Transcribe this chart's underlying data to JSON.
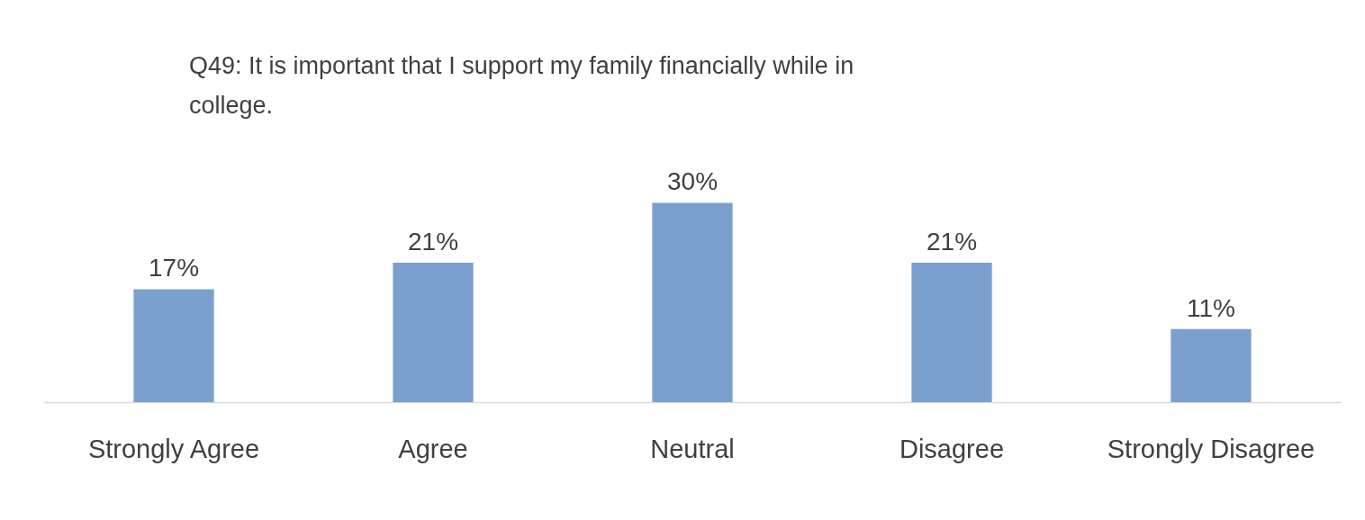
{
  "chart_data": {
    "type": "bar",
    "title": "Q49: It is important that I support my family financially while in college.",
    "categories": [
      "Strongly Agree",
      "Agree",
      "Neutral",
      "Disagree",
      "Strongly Disagree"
    ],
    "values": [
      17,
      21,
      30,
      21,
      11
    ],
    "value_labels": [
      "17%",
      "21%",
      "30%",
      "21%",
      "11%"
    ],
    "color": "#7ba0cd"
  }
}
